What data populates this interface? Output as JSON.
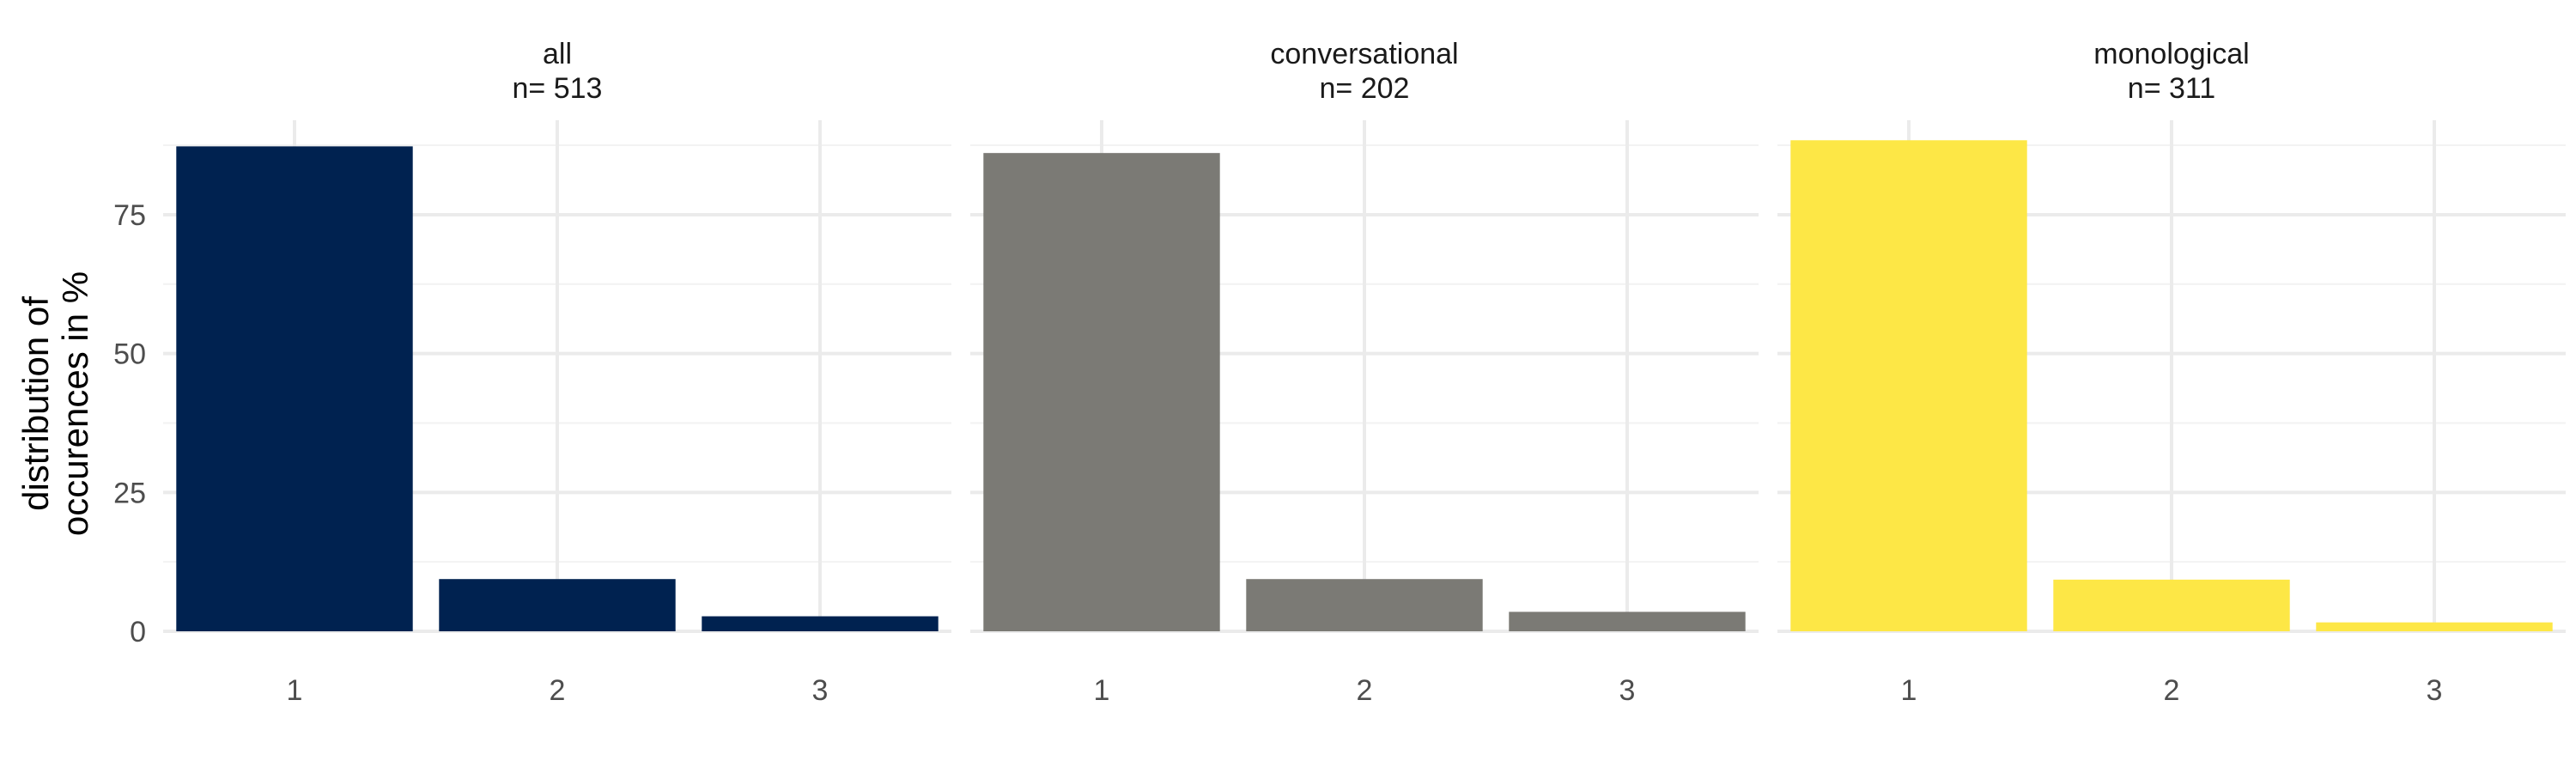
{
  "chart_data": {
    "type": "bar",
    "ylabel": [
      "distribution of",
      "occurences in %"
    ],
    "ylim": [
      0,
      92
    ],
    "yticks": [
      0,
      25,
      50,
      75
    ],
    "categories": [
      "1",
      "2",
      "3"
    ],
    "grid": true,
    "panels": [
      {
        "title": "all",
        "subtitle": "n=  513",
        "color": "#002250",
        "values": [
          87.3,
          9.4,
          2.7
        ]
      },
      {
        "title": "conversational",
        "subtitle": "n=  202",
        "color": "#7b7a75",
        "values": [
          86.1,
          9.4,
          3.5
        ]
      },
      {
        "title": "monological",
        "subtitle": "n=  311",
        "color": "#fde746",
        "values": [
          88.4,
          9.3,
          1.6
        ]
      }
    ]
  }
}
